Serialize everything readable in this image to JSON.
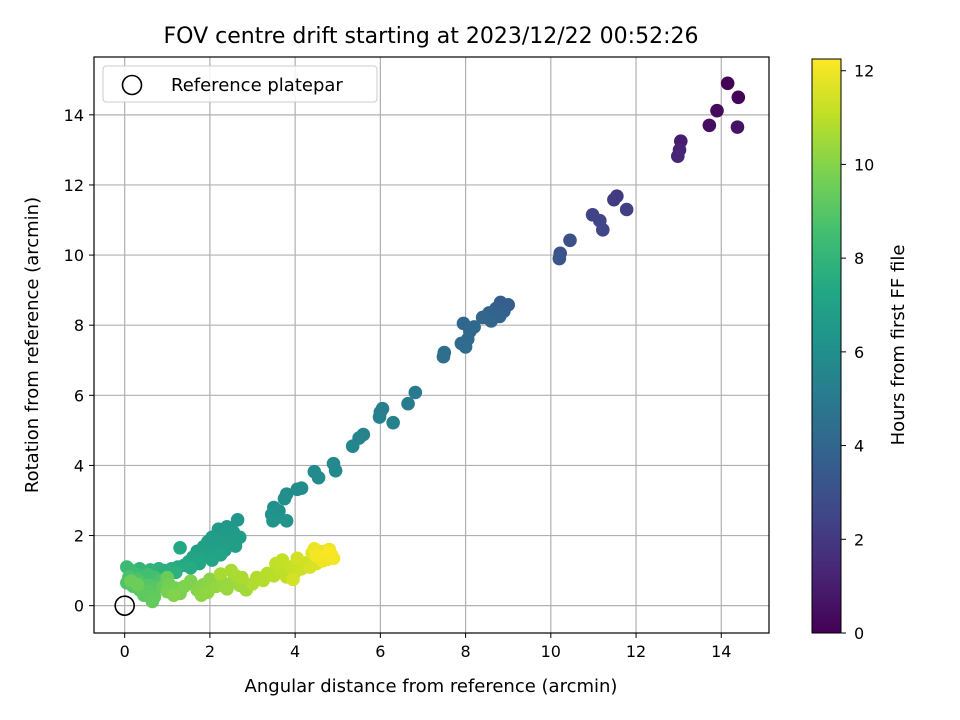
{
  "chart_data": {
    "type": "scatter",
    "title": "FOV centre drift starting at 2023/12/22 00:52:26",
    "xlabel": "Angular distance from reference (arcmin)",
    "ylabel": "Rotation from reference (arcmin)",
    "xlim": [
      -0.72,
      15.12
    ],
    "ylim": [
      -0.78,
      15.65
    ],
    "xticks": [
      0,
      2,
      4,
      6,
      8,
      10,
      12,
      14
    ],
    "yticks": [
      0,
      2,
      4,
      6,
      8,
      10,
      12,
      14
    ],
    "grid": true,
    "legend": {
      "location": "upper-left",
      "entries": [
        "Reference platepar"
      ]
    },
    "reference_point": {
      "x": 0,
      "y": 0,
      "marker": "hollow-circle"
    },
    "colorbar": {
      "label": "Hours from first FF file",
      "colormap": "viridis",
      "range": [
        0,
        12.25
      ],
      "ticks": [
        0,
        2,
        4,
        6,
        8,
        10,
        12
      ]
    },
    "series": [
      {
        "columns": [
          "x",
          "y",
          "hours"
        ],
        "points": [
          [
            14.15,
            14.9,
            0.05
          ],
          [
            14.4,
            14.5,
            0.15
          ],
          [
            13.9,
            14.12,
            0.3
          ],
          [
            13.72,
            13.7,
            0.45
          ],
          [
            14.38,
            13.65,
            0.6
          ],
          [
            13.05,
            13.25,
            1.0
          ],
          [
            13.02,
            13.0,
            1.15
          ],
          [
            12.98,
            12.82,
            1.3
          ],
          [
            11.55,
            11.68,
            2.0
          ],
          [
            11.48,
            11.58,
            2.1
          ],
          [
            11.78,
            11.3,
            2.25
          ],
          [
            10.98,
            11.15,
            2.4
          ],
          [
            11.15,
            10.98,
            2.5
          ],
          [
            11.22,
            10.72,
            2.6
          ],
          [
            10.45,
            10.42,
            3.0
          ],
          [
            10.22,
            10.05,
            3.1
          ],
          [
            10.2,
            9.9,
            3.2
          ],
          [
            8.82,
            8.65,
            3.6
          ],
          [
            9.0,
            8.58,
            3.65
          ],
          [
            8.72,
            8.48,
            3.7
          ],
          [
            8.9,
            8.4,
            3.75
          ],
          [
            8.55,
            8.35,
            3.8
          ],
          [
            8.65,
            8.28,
            3.85
          ],
          [
            8.8,
            8.25,
            3.9
          ],
          [
            8.4,
            8.22,
            3.95
          ],
          [
            8.6,
            8.12,
            4.0
          ],
          [
            7.95,
            8.05,
            4.05
          ],
          [
            8.2,
            7.95,
            4.1
          ],
          [
            8.1,
            7.82,
            4.15
          ],
          [
            8.05,
            7.6,
            4.2
          ],
          [
            7.9,
            7.48,
            4.25
          ],
          [
            8.0,
            7.38,
            4.3
          ],
          [
            7.5,
            7.22,
            4.4
          ],
          [
            7.48,
            7.1,
            4.45
          ],
          [
            6.82,
            6.08,
            5.0
          ],
          [
            6.65,
            5.76,
            5.1
          ],
          [
            6.05,
            5.62,
            5.2
          ],
          [
            6.0,
            5.52,
            5.25
          ],
          [
            5.98,
            5.38,
            5.3
          ],
          [
            6.3,
            5.22,
            5.35
          ],
          [
            5.6,
            4.88,
            5.45
          ],
          [
            5.5,
            4.78,
            5.5
          ],
          [
            5.35,
            4.55,
            5.55
          ],
          [
            4.9,
            4.05,
            5.7
          ],
          [
            4.95,
            3.85,
            5.75
          ],
          [
            4.45,
            3.82,
            5.8
          ],
          [
            4.55,
            3.65,
            5.85
          ],
          [
            4.15,
            3.35,
            5.9
          ],
          [
            4.05,
            3.32,
            5.95
          ],
          [
            3.8,
            3.18,
            6.0
          ],
          [
            3.75,
            3.05,
            6.05
          ],
          [
            3.5,
            2.8,
            6.1
          ],
          [
            3.62,
            2.7,
            6.15
          ],
          [
            3.45,
            2.6,
            6.2
          ],
          [
            3.55,
            2.5,
            6.25
          ],
          [
            3.8,
            2.42,
            6.3
          ],
          [
            3.48,
            2.42,
            6.3
          ],
          [
            2.65,
            2.45,
            6.4
          ],
          [
            2.4,
            2.25,
            6.5
          ],
          [
            2.2,
            2.18,
            6.55
          ],
          [
            2.55,
            2.1,
            6.6
          ],
          [
            2.3,
            2.02,
            6.65
          ],
          [
            2.05,
            1.95,
            6.7
          ],
          [
            2.7,
            1.95,
            6.72
          ],
          [
            1.95,
            1.82,
            6.75
          ],
          [
            2.2,
            1.82,
            6.78
          ],
          [
            2.45,
            1.75,
            6.8
          ],
          [
            2.6,
            1.7,
            6.82
          ],
          [
            1.85,
            1.68,
            6.85
          ],
          [
            2.1,
            1.62,
            6.88
          ],
          [
            2.35,
            1.58,
            6.9
          ],
          [
            1.7,
            1.55,
            6.95
          ],
          [
            1.95,
            1.48,
            7.0
          ],
          [
            2.25,
            1.45,
            7.05
          ],
          [
            1.6,
            1.38,
            7.1
          ],
          [
            1.8,
            1.35,
            7.15
          ],
          [
            2.05,
            1.3,
            7.2
          ],
          [
            1.5,
            1.25,
            7.25
          ],
          [
            1.75,
            1.2,
            7.3
          ],
          [
            1.3,
            1.65,
            7.35
          ],
          [
            1.4,
            1.15,
            7.4
          ],
          [
            1.25,
            1.1,
            7.45
          ],
          [
            1.55,
            1.08,
            7.5
          ],
          [
            1.1,
            1.05,
            7.6
          ],
          [
            0.95,
            1.0,
            7.7
          ],
          [
            1.2,
            0.95,
            7.75
          ],
          [
            0.8,
            1.05,
            7.8
          ],
          [
            0.6,
            1.02,
            7.9
          ],
          [
            0.35,
            1.05,
            8.0
          ],
          [
            0.45,
            0.95,
            8.1
          ],
          [
            0.15,
            1.0,
            8.2
          ],
          [
            0.05,
            1.1,
            8.3
          ],
          [
            0.25,
            0.9,
            8.4
          ],
          [
            0.55,
            0.88,
            8.5
          ],
          [
            0.7,
            0.8,
            8.6
          ],
          [
            0.1,
            0.82,
            8.7
          ],
          [
            0.3,
            0.75,
            8.75
          ],
          [
            0.85,
            0.72,
            8.8
          ],
          [
            0.05,
            0.65,
            8.85
          ],
          [
            0.4,
            0.62,
            8.9
          ],
          [
            0.6,
            0.58,
            8.95
          ],
          [
            0.2,
            0.55,
            9.0
          ],
          [
            0.75,
            0.5,
            9.05
          ],
          [
            0.35,
            0.45,
            9.1
          ],
          [
            0.55,
            0.4,
            9.15
          ],
          [
            0.45,
            0.3,
            9.2
          ],
          [
            0.7,
            0.25,
            9.25
          ],
          [
            0.65,
            0.12,
            9.3
          ],
          [
            0.9,
            0.55,
            9.35
          ],
          [
            1.0,
            0.8,
            9.4
          ],
          [
            0.15,
            0.7,
            9.45
          ],
          [
            0.3,
            0.6,
            9.5
          ],
          [
            1.05,
            0.6,
            9.6
          ],
          [
            1.2,
            0.5,
            9.7
          ],
          [
            1.0,
            0.4,
            9.75
          ],
          [
            1.3,
            0.35,
            9.8
          ],
          [
            1.4,
            0.55,
            9.85
          ],
          [
            1.55,
            0.7,
            9.9
          ],
          [
            1.15,
            0.3,
            9.95
          ],
          [
            1.7,
            0.45,
            10.0
          ],
          [
            1.85,
            0.6,
            10.05
          ],
          [
            2.0,
            0.75,
            10.1
          ],
          [
            1.8,
            0.3,
            10.15
          ],
          [
            1.95,
            0.38,
            10.2
          ],
          [
            2.15,
            0.55,
            10.25
          ],
          [
            2.3,
            0.65,
            10.3
          ],
          [
            2.4,
            0.48,
            10.35
          ],
          [
            2.55,
            0.7,
            10.4
          ],
          [
            2.7,
            0.58,
            10.45
          ],
          [
            2.85,
            0.45,
            10.5
          ],
          [
            2.6,
            0.85,
            10.55
          ],
          [
            2.25,
            0.9,
            10.6
          ],
          [
            2.5,
            1.0,
            10.65
          ],
          [
            2.75,
            0.8,
            10.7
          ],
          [
            3.0,
            0.62,
            10.75
          ],
          [
            3.1,
            0.8,
            10.8
          ],
          [
            3.25,
            0.72,
            10.85
          ],
          [
            3.35,
            0.92,
            10.9
          ],
          [
            3.5,
            0.85,
            10.95
          ],
          [
            3.65,
            1.0,
            11.0
          ],
          [
            3.8,
            0.82,
            11.05
          ],
          [
            3.55,
            1.2,
            11.1
          ],
          [
            3.7,
            1.3,
            11.15
          ],
          [
            3.9,
            1.1,
            11.2
          ],
          [
            4.0,
            0.95,
            11.25
          ],
          [
            4.15,
            1.05,
            11.3
          ],
          [
            4.25,
            1.22,
            11.35
          ],
          [
            4.05,
            1.35,
            11.4
          ],
          [
            3.95,
            0.75,
            11.45
          ],
          [
            4.35,
            1.1,
            11.5
          ],
          [
            4.5,
            1.2,
            11.55
          ],
          [
            4.6,
            1.4,
            11.6
          ],
          [
            4.4,
            1.5,
            11.65
          ],
          [
            4.75,
            1.32,
            11.7
          ],
          [
            4.55,
            1.55,
            11.75
          ],
          [
            4.85,
            1.45,
            11.8
          ],
          [
            4.7,
            1.55,
            11.85
          ],
          [
            4.45,
            1.62,
            11.9
          ],
          [
            4.8,
            1.6,
            11.95
          ],
          [
            4.65,
            1.28,
            12.0
          ],
          [
            4.9,
            1.35,
            12.05
          ],
          [
            4.5,
            1.42,
            12.1
          ],
          [
            4.78,
            1.5,
            12.15
          ]
        ]
      }
    ]
  }
}
